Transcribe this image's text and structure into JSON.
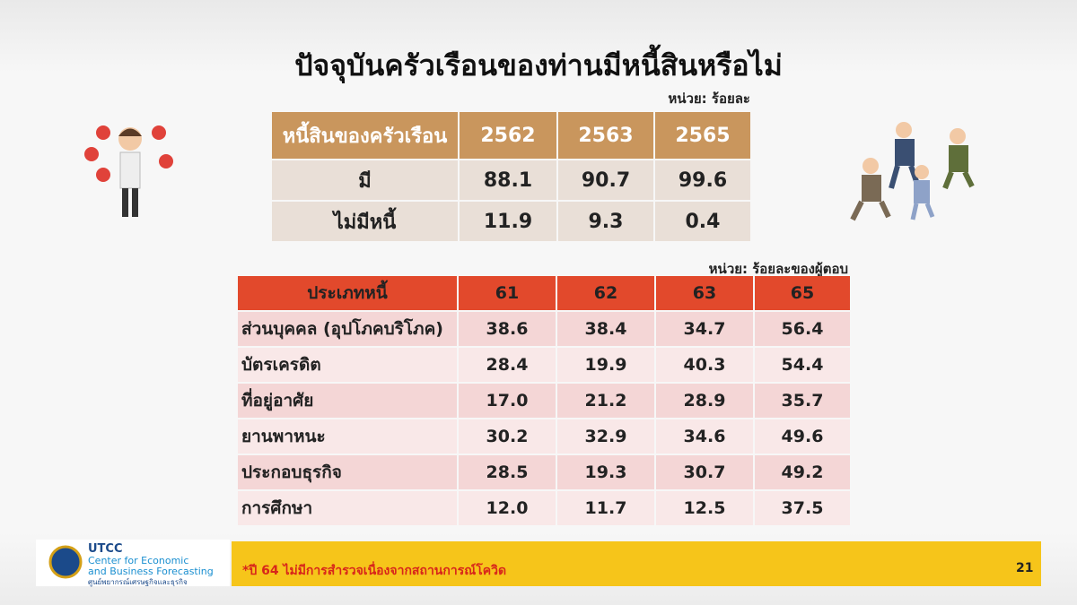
{
  "header": {
    "title": "ปัจจุบันครัวเรือนของท่านมีหนี้สินหรือไม่"
  },
  "table1": {
    "unit": "หน่วย: ร้อยละ",
    "columns": [
      "หนี้สินของครัวเรือน",
      "2562",
      "2563",
      "2565"
    ],
    "rows": [
      [
        "มี",
        "88.1",
        "90.7",
        "99.6"
      ],
      [
        "ไม่มีหนี้",
        "11.9",
        "9.3",
        "0.4"
      ]
    ]
  },
  "table2": {
    "unit": "หน่วย: ร้อยละของผู้ตอบ",
    "columns": [
      "ประเภทหนี้",
      "61",
      "62",
      "63",
      "65"
    ],
    "rows": [
      [
        "ส่วนบุคคล (อุปโภคบริโภค)",
        "38.6",
        "38.4",
        "34.7",
        "56.4"
      ],
      [
        "บัตรเครดิต",
        "28.4",
        "19.9",
        "40.3",
        "54.4"
      ],
      [
        "ที่อยู่อาศัย",
        "17.0",
        "21.2",
        "28.9",
        "35.7"
      ],
      [
        "ยานพาหนะ",
        "30.2",
        "32.9",
        "34.6",
        "49.6"
      ],
      [
        "ประกอบธุรกิจ",
        "28.5",
        "19.3",
        "30.7",
        "49.2"
      ],
      [
        "การศึกษา",
        "12.0",
        "11.7",
        "12.5",
        "37.5"
      ]
    ]
  },
  "footer": {
    "logo": {
      "name": "UTCC",
      "line1": "Center for Economic",
      "line2": "and Business Forecasting",
      "thai": "ศูนย์พยากรณ์เศรษฐกิจและธุรกิจ"
    },
    "note": "*ปี 64 ไม่มีการสำรวจเนื่องจากสถานการณ์โควิด",
    "page": "21"
  }
}
